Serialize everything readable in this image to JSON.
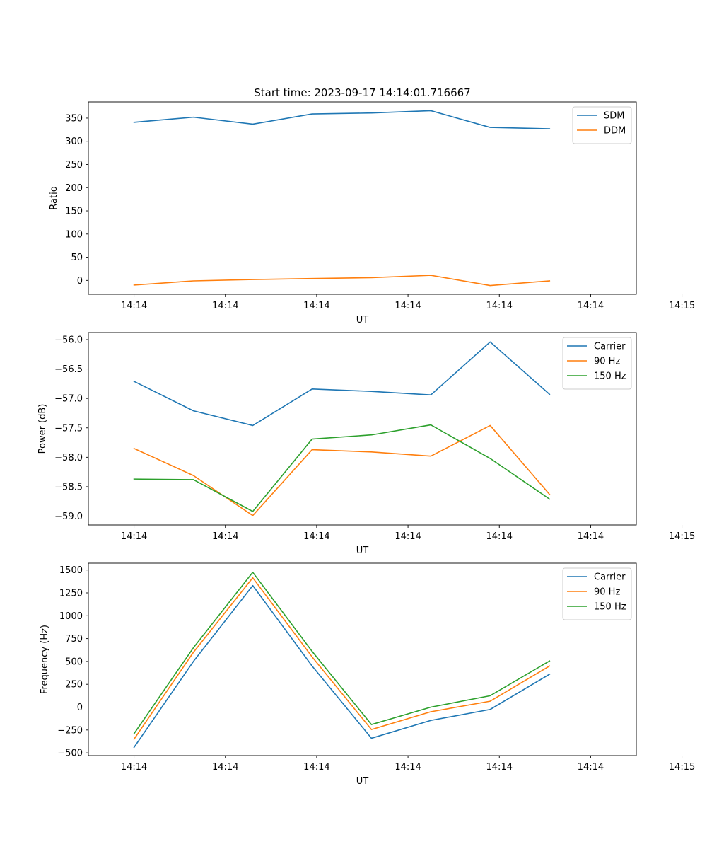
{
  "title": "Start time: 2023-09-17 14:14:01.716667",
  "chart_data": [
    {
      "type": "line",
      "xlabel": "UT",
      "ylabel": "Ratio",
      "xlim": [
        -0.5,
        5.5
      ],
      "ylim": [
        -30,
        385
      ],
      "xtick_values": [
        0,
        1,
        2,
        3,
        4,
        5,
        6
      ],
      "xtick_labels": [
        "14:14",
        "14:14",
        "14:14",
        "14:14",
        "14:14",
        "14:14",
        "14:15"
      ],
      "yticks": [
        0,
        50,
        100,
        150,
        200,
        250,
        300,
        350
      ],
      "ytick_labels": [
        "0",
        "50",
        "100",
        "150",
        "200",
        "250",
        "300",
        "350"
      ],
      "x": [
        0,
        0.65,
        1.3,
        1.95,
        2.6,
        3.25,
        3.9,
        4.55
      ],
      "legend_position": "top-right",
      "series": [
        {
          "name": "SDM",
          "color": "#1f77b4",
          "values": [
            341,
            352,
            337,
            359,
            361,
            366,
            330,
            327
          ]
        },
        {
          "name": "DDM",
          "color": "#ff7f0e",
          "values": [
            -10,
            -1,
            2,
            4,
            6,
            11,
            -11,
            -1
          ]
        }
      ]
    },
    {
      "type": "line",
      "xlabel": "UT",
      "ylabel": "Power (dB)",
      "xlim": [
        -0.5,
        5.5
      ],
      "ylim": [
        -59.15,
        -55.88
      ],
      "xtick_values": [
        0,
        1,
        2,
        3,
        4,
        5,
        6
      ],
      "xtick_labels": [
        "14:14",
        "14:14",
        "14:14",
        "14:14",
        "14:14",
        "14:14",
        "14:15"
      ],
      "yticks": [
        -59.0,
        -58.5,
        -58.0,
        -57.5,
        -57.0,
        -56.5,
        -56.0
      ],
      "ytick_labels": [
        "−59.0",
        "−58.5",
        "−58.0",
        "−57.5",
        "−57.0",
        "−56.5",
        "−56.0"
      ],
      "x": [
        0,
        0.65,
        1.3,
        1.95,
        2.6,
        3.25,
        3.9,
        4.55
      ],
      "legend_position": "top-right",
      "series": [
        {
          "name": "Carrier",
          "color": "#1f77b4",
          "values": [
            -56.71,
            -57.21,
            -57.46,
            -56.84,
            -56.88,
            -56.94,
            -56.04,
            -56.93
          ]
        },
        {
          "name": "90 Hz",
          "color": "#ff7f0e",
          "values": [
            -57.85,
            -58.31,
            -58.99,
            -57.87,
            -57.91,
            -57.98,
            -57.46,
            -58.63
          ]
        },
        {
          "name": "150 Hz",
          "color": "#2ca02c",
          "values": [
            -58.37,
            -58.38,
            -58.92,
            -57.69,
            -57.62,
            -57.45,
            -58.02,
            -58.71
          ]
        }
      ]
    },
    {
      "type": "line",
      "xlabel": "UT",
      "ylabel": "Frequency (Hz)",
      "xlim": [
        -0.5,
        5.5
      ],
      "ylim": [
        -530,
        1575
      ],
      "xtick_values": [
        0,
        1,
        2,
        3,
        4,
        5,
        6
      ],
      "xtick_labels": [
        "14:14",
        "14:14",
        "14:14",
        "14:14",
        "14:14",
        "14:14",
        "14:15"
      ],
      "yticks": [
        -500,
        -250,
        0,
        250,
        500,
        750,
        1000,
        1250,
        1500
      ],
      "ytick_labels": [
        "−500",
        "−250",
        "0",
        "250",
        "500",
        "750",
        "1000",
        "1250",
        "1500"
      ],
      "x": [
        0,
        0.65,
        1.3,
        1.95,
        2.6,
        3.25,
        3.9,
        4.55
      ],
      "legend_position": "top-right",
      "series": [
        {
          "name": "Carrier",
          "color": "#1f77b4",
          "values": [
            -440,
            500,
            1330,
            450,
            -340,
            -145,
            -25,
            360
          ]
        },
        {
          "name": "90 Hz",
          "color": "#ff7f0e",
          "values": [
            -350,
            600,
            1415,
            550,
            -245,
            -50,
            65,
            450
          ]
        },
        {
          "name": "150 Hz",
          "color": "#2ca02c",
          "values": [
            -290,
            650,
            1475,
            610,
            -190,
            0,
            125,
            505
          ]
        }
      ]
    }
  ]
}
